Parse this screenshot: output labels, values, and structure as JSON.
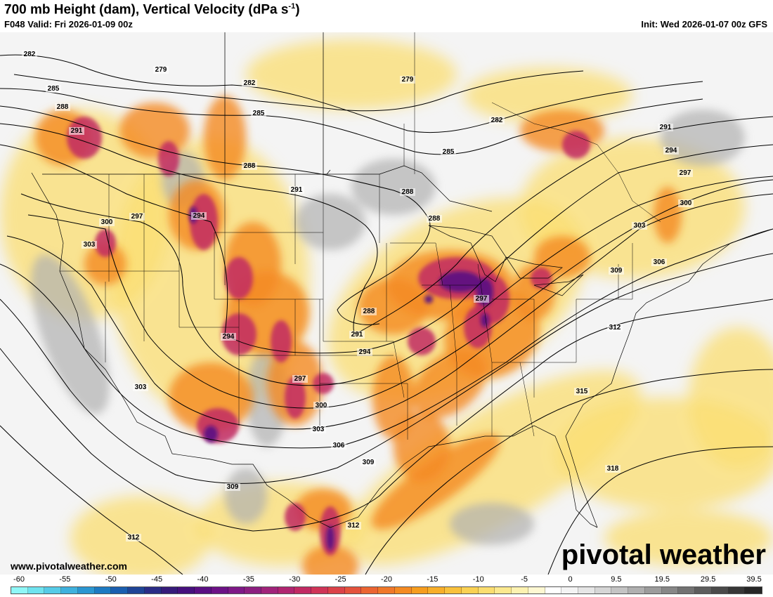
{
  "header": {
    "title_main": "700 mb Height (dam), Vertical Velocity (dPa s",
    "title_sup": "-1",
    "title_end": ")",
    "valid": "F048 Valid: Fri 2026-01-09 00z",
    "init": "Init: Wed 2026-01-07 00z GFS"
  },
  "footer": {
    "website": "www.pivotalweather.com",
    "brand": "pivotal weather"
  },
  "colorbar": {
    "tick_labels": [
      "-60",
      "-55",
      "-50",
      "-45",
      "-40",
      "-35",
      "-30",
      "-25",
      "-20",
      "-15",
      "-10",
      "-5",
      "0",
      "9.5",
      "19.5",
      "29.5",
      "39.5"
    ],
    "colors": [
      "#8ff7f7",
      "#6fe3ef",
      "#56cbe7",
      "#3fb1dd",
      "#2b96d1",
      "#1d7ac2",
      "#1a5eaf",
      "#1f4496",
      "#2a2c86",
      "#361b7a",
      "#46107d",
      "#5a0f83",
      "#6c1286",
      "#7e1987",
      "#8c1f80",
      "#a0237a",
      "#b02570",
      "#c12a63",
      "#cf3457",
      "#db4249",
      "#e4523d",
      "#eb6432",
      "#f0782a",
      "#f48a22",
      "#f69d1f",
      "#f8af2a",
      "#f9c13c",
      "#fad153",
      "#fbde70",
      "#fce98f",
      "#fdf2b1",
      "#fef8d2",
      "#ffffff",
      "#f4f4f4",
      "#e6e6e6",
      "#d6d6d6",
      "#c4c4c4",
      "#b0b0b0",
      "#9c9c9c",
      "#878787",
      "#727272",
      "#5d5d5d",
      "#4a4a4a",
      "#373737",
      "#262626"
    ]
  },
  "map": {
    "height_contours_dam": [
      "279",
      "282",
      "285",
      "288",
      "291",
      "294",
      "297",
      "300",
      "303",
      "306",
      "309",
      "312",
      "315",
      "318"
    ],
    "contour_labels": [
      {
        "text": "282"
      },
      {
        "text": "279"
      },
      {
        "text": "285"
      },
      {
        "text": "282"
      },
      {
        "text": "288"
      },
      {
        "text": "291"
      },
      {
        "text": "285"
      },
      {
        "text": "279"
      },
      {
        "text": "282"
      },
      {
        "text": "285"
      },
      {
        "text": "288"
      },
      {
        "text": "291"
      },
      {
        "text": "288"
      },
      {
        "text": "291"
      },
      {
        "text": "294"
      },
      {
        "text": "297"
      },
      {
        "text": "300"
      },
      {
        "text": "303"
      },
      {
        "text": "297"
      },
      {
        "text": "300"
      },
      {
        "text": "303"
      },
      {
        "text": "294"
      },
      {
        "text": "288"
      },
      {
        "text": "288"
      },
      {
        "text": "297"
      },
      {
        "text": "291"
      },
      {
        "text": "294"
      },
      {
        "text": "294"
      },
      {
        "text": "306"
      },
      {
        "text": "309"
      },
      {
        "text": "312"
      },
      {
        "text": "303"
      },
      {
        "text": "297"
      },
      {
        "text": "300"
      },
      {
        "text": "303"
      },
      {
        "text": "306"
      },
      {
        "text": "309"
      },
      {
        "text": "315"
      },
      {
        "text": "318"
      },
      {
        "text": "309"
      },
      {
        "text": "312"
      },
      {
        "text": "312"
      }
    ],
    "colors": {
      "contour": "#000000",
      "border": "#000000",
      "rising_strong": "#5a0f83",
      "rising_moderate": "#c12a63",
      "rising_weak": "#f48a22",
      "rising_light": "#fbde70",
      "sinking": "#b0b0b0"
    }
  }
}
